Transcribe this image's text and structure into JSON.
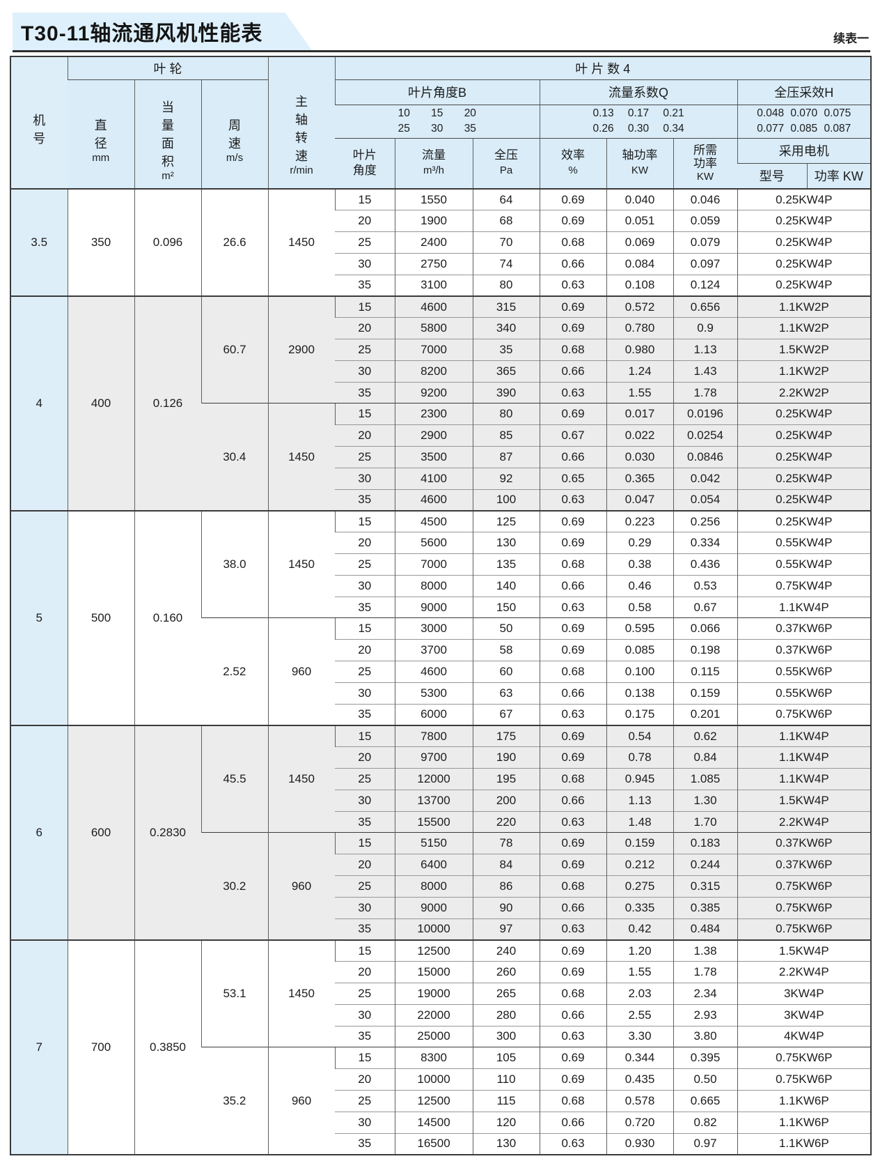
{
  "page": {
    "title": "T30-11轴流通风机性能表",
    "continuation": "续表一"
  },
  "colors": {
    "header_bg": "#d9ecf8",
    "machine_col_bg": "#ddeef9",
    "gray_block_bg": "#ececec",
    "title_banner_bg": "#def0fb",
    "border_dark": "#3a3a3a"
  },
  "table": {
    "header": {
      "machine_no": [
        "机",
        "号"
      ],
      "impeller": "叶  轮",
      "diameter": {
        "chars": [
          "直",
          "径"
        ],
        "unit": "mm"
      },
      "eq_area": {
        "chars": [
          "当",
          "量",
          "面",
          "积"
        ],
        "unit": "m²"
      },
      "tip_speed": {
        "chars": [
          "周",
          "速"
        ],
        "unit": "m/s"
      },
      "shaft_rpm": {
        "chars": [
          "主",
          "轴",
          "转",
          "速"
        ],
        "unit": "r/min"
      },
      "blade_count": "叶 片 数 4",
      "angle_group": {
        "label": "叶片角度B",
        "row1": "10 15 20",
        "row2": "25 30 35"
      },
      "flow_group": {
        "label": "流量系数Q",
        "row1": "0.13 0.17 0.21",
        "row2": "0.26 0.30 0.34"
      },
      "pressure_group": {
        "label": "全压采效H",
        "row1": "0.048 0.070 0.075",
        "row2": "0.077 0.085 0.087"
      },
      "cols": {
        "angle1": "叶片",
        "angle2": "角度",
        "flow": "流量",
        "flow_unit": "m³/h",
        "pressure": "全压",
        "pressure_unit": "Pa",
        "efficiency": "效率",
        "efficiency_unit": "%",
        "shaft_power": "轴功率",
        "shaft_power_unit": "KW",
        "required1": "所需",
        "required2": "功率",
        "required3": "KW",
        "motor": "采用电机",
        "motor_model": "型号",
        "motor_power": "功率 KW"
      }
    },
    "machines": [
      {
        "no": "3.5",
        "diameter": "350",
        "area": "0.096",
        "shade": "white",
        "blocks": [
          {
            "speed": "26.6",
            "rpm": "1450",
            "rows": [
              [
                "15",
                "1550",
                "64",
                "0.69",
                "0.040",
                "0.046",
                "0.25KW4P"
              ],
              [
                "20",
                "1900",
                "68",
                "0.69",
                "0.051",
                "0.059",
                "0.25KW4P"
              ],
              [
                "25",
                "2400",
                "70",
                "0.68",
                "0.069",
                "0.079",
                "0.25KW4P"
              ],
              [
                "30",
                "2750",
                "74",
                "0.66",
                "0.084",
                "0.097",
                "0.25KW4P"
              ],
              [
                "35",
                "3100",
                "80",
                "0.63",
                "0.108",
                "0.124",
                "0.25KW4P"
              ]
            ]
          }
        ]
      },
      {
        "no": "4",
        "diameter": "400",
        "area": "0.126",
        "shade": "gray",
        "blocks": [
          {
            "speed": "60.7",
            "rpm": "2900",
            "rows": [
              [
                "15",
                "4600",
                "315",
                "0.69",
                "0.572",
                "0.656",
                "1.1KW2P"
              ],
              [
                "20",
                "5800",
                "340",
                "0.69",
                "0.780",
                "0.9",
                "1.1KW2P"
              ],
              [
                "25",
                "7000",
                "35",
                "0.68",
                "0.980",
                "1.13",
                "1.5KW2P"
              ],
              [
                "30",
                "8200",
                "365",
                "0.66",
                "1.24",
                "1.43",
                "1.1KW2P"
              ],
              [
                "35",
                "9200",
                "390",
                "0.63",
                "1.55",
                "1.78",
                "2.2KW2P"
              ]
            ]
          },
          {
            "speed": "30.4",
            "rpm": "1450",
            "rows": [
              [
                "15",
                "2300",
                "80",
                "0.69",
                "0.017",
                "0.0196",
                "0.25KW4P"
              ],
              [
                "20",
                "2900",
                "85",
                "0.67",
                "0.022",
                "0.0254",
                "0.25KW4P"
              ],
              [
                "25",
                "3500",
                "87",
                "0.66",
                "0.030",
                "0.0846",
                "0.25KW4P"
              ],
              [
                "30",
                "4100",
                "92",
                "0.65",
                "0.365",
                "0.042",
                "0.25KW4P"
              ],
              [
                "35",
                "4600",
                "100",
                "0.63",
                "0.047",
                "0.054",
                "0.25KW4P"
              ]
            ]
          }
        ]
      },
      {
        "no": "5",
        "diameter": "500",
        "area": "0.160",
        "shade": "white",
        "blocks": [
          {
            "speed": "38.0",
            "rpm": "1450",
            "rows": [
              [
                "15",
                "4500",
                "125",
                "0.69",
                "0.223",
                "0.256",
                "0.25KW4P"
              ],
              [
                "20",
                "5600",
                "130",
                "0.69",
                "0.29",
                "0.334",
                "0.55KW4P"
              ],
              [
                "25",
                "7000",
                "135",
                "0.68",
                "0.38",
                "0.436",
                "0.55KW4P"
              ],
              [
                "30",
                "8000",
                "140",
                "0.66",
                "0.46",
                "0.53",
                "0.75KW4P"
              ],
              [
                "35",
                "9000",
                "150",
                "0.63",
                "0.58",
                "0.67",
                "1.1KW4P"
              ]
            ]
          },
          {
            "speed": "2.52",
            "rpm": "960",
            "rows": [
              [
                "15",
                "3000",
                "50",
                "0.69",
                "0.595",
                "0.066",
                "0.37KW6P"
              ],
              [
                "20",
                "3700",
                "58",
                "0.69",
                "0.085",
                "0.198",
                "0.37KW6P"
              ],
              [
                "25",
                "4600",
                "60",
                "0.68",
                "0.100",
                "0.115",
                "0.55KW6P"
              ],
              [
                "30",
                "5300",
                "63",
                "0.66",
                "0.138",
                "0.159",
                "0.55KW6P"
              ],
              [
                "35",
                "6000",
                "67",
                "0.63",
                "0.175",
                "0.201",
                "0.75KW6P"
              ]
            ]
          }
        ]
      },
      {
        "no": "6",
        "diameter": "600",
        "area": "0.2830",
        "shade": "gray",
        "blocks": [
          {
            "speed": "45.5",
            "rpm": "1450",
            "rows": [
              [
                "15",
                "7800",
                "175",
                "0.69",
                "0.54",
                "0.62",
                "1.1KW4P"
              ],
              [
                "20",
                "9700",
                "190",
                "0.69",
                "0.78",
                "0.84",
                "1.1KW4P"
              ],
              [
                "25",
                "12000",
                "195",
                "0.68",
                "0.945",
                "1.085",
                "1.1KW4P"
              ],
              [
                "30",
                "13700",
                "200",
                "0.66",
                "1.13",
                "1.30",
                "1.5KW4P"
              ],
              [
                "35",
                "15500",
                "220",
                "0.63",
                "1.48",
                "1.70",
                "2.2KW4P"
              ]
            ]
          },
          {
            "speed": "30.2",
            "rpm": "960",
            "rows": [
              [
                "15",
                "5150",
                "78",
                "0.69",
                "0.159",
                "0.183",
                "0.37KW6P"
              ],
              [
                "20",
                "6400",
                "84",
                "0.69",
                "0.212",
                "0.244",
                "0.37KW6P"
              ],
              [
                "25",
                "8000",
                "86",
                "0.68",
                "0.275",
                "0.315",
                "0.75KW6P"
              ],
              [
                "30",
                "9000",
                "90",
                "0.66",
                "0.335",
                "0.385",
                "0.75KW6P"
              ],
              [
                "35",
                "10000",
                "97",
                "0.63",
                "0.42",
                "0.484",
                "0.75KW6P"
              ]
            ]
          }
        ]
      },
      {
        "no": "7",
        "diameter": "700",
        "area": "0.3850",
        "shade": "white",
        "blocks": [
          {
            "speed": "53.1",
            "rpm": "1450",
            "rows": [
              [
                "15",
                "12500",
                "240",
                "0.69",
                "1.20",
                "1.38",
                "1.5KW4P"
              ],
              [
                "20",
                "15000",
                "260",
                "0.69",
                "1.55",
                "1.78",
                "2.2KW4P"
              ],
              [
                "25",
                "19000",
                "265",
                "0.68",
                "2.03",
                "2.34",
                "3KW4P"
              ],
              [
                "30",
                "22000",
                "280",
                "0.66",
                "2.55",
                "2.93",
                "3KW4P"
              ],
              [
                "35",
                "25000",
                "300",
                "0.63",
                "3.30",
                "3.80",
                "4KW4P"
              ]
            ]
          },
          {
            "speed": "35.2",
            "rpm": "960",
            "rows": [
              [
                "15",
                "8300",
                "105",
                "0.69",
                "0.344",
                "0.395",
                "0.75KW6P"
              ],
              [
                "20",
                "10000",
                "110",
                "0.69",
                "0.435",
                "0.50",
                "0.75KW6P"
              ],
              [
                "25",
                "12500",
                "115",
                "0.68",
                "0.578",
                "0.665",
                "1.1KW6P"
              ],
              [
                "30",
                "14500",
                "120",
                "0.66",
                "0.720",
                "0.82",
                "1.1KW6P"
              ],
              [
                "35",
                "16500",
                "130",
                "0.63",
                "0.930",
                "0.97",
                "1.1KW6P"
              ]
            ]
          }
        ]
      }
    ]
  }
}
